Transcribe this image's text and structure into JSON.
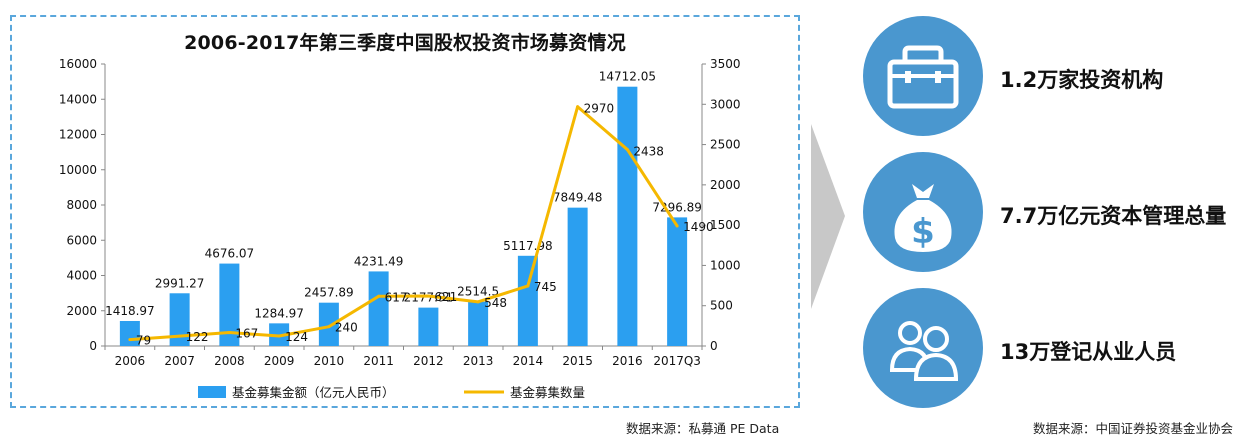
{
  "chart_data": {
    "type": "bar+line",
    "title": "2006-2017年第三季度中国股权投资市场募资情况",
    "categories": [
      "2006",
      "2007",
      "2008",
      "2009",
      "2010",
      "2011",
      "2012",
      "2013",
      "2014",
      "2015",
      "2016",
      "2017Q3"
    ],
    "series": [
      {
        "name": "基金募集金额（亿元人民币）",
        "type": "bar",
        "axis": "left",
        "values": [
          1418.97,
          2991.27,
          4676.07,
          1284.97,
          2457.89,
          4231.49,
          2177.91,
          2514.5,
          5117.98,
          7849.48,
          14712.05,
          7296.89
        ],
        "labels": [
          "1418.97",
          "2991.27",
          "4676.07",
          "1284.97",
          "2457.89",
          "4231.49",
          "2177.91",
          "2514.5",
          "5117.98",
          "7849.48",
          "14712.05",
          "7296.89"
        ],
        "color": "#2b9ff0"
      },
      {
        "name": "基金募集数量",
        "type": "line",
        "axis": "right",
        "values": [
          79,
          122,
          167,
          124,
          240,
          617,
          621,
          548,
          745,
          2970,
          2438,
          1490
        ],
        "labels": [
          "79",
          "122",
          "167",
          "124",
          "240",
          "617",
          "621",
          "548",
          "745",
          "2970",
          "2438",
          "1490"
        ],
        "color": "#f5b800"
      }
    ],
    "y_left": {
      "range": [
        0,
        16000
      ],
      "ticks": [
        "0",
        "2000",
        "4000",
        "6000",
        "8000",
        "10000",
        "12000",
        "14000",
        "16000"
      ]
    },
    "y_right": {
      "range": [
        0,
        3500
      ],
      "ticks": [
        "0",
        "500",
        "1000",
        "1500",
        "2000",
        "2500",
        "3000",
        "3500"
      ]
    },
    "grid": false,
    "legend": "bottom"
  },
  "chart_source": "数据来源：私募通 PE Data",
  "stats": [
    {
      "icon": "briefcase-icon",
      "label": "1.2万家投资机构"
    },
    {
      "icon": "money-bag-icon",
      "label": "7.7万亿元资本管理总量"
    },
    {
      "icon": "people-icon",
      "label": "13万登记从业人员"
    }
  ],
  "stats_source": "数据来源：中国证券投资基金业协会",
  "colors": {
    "bar": "#2b9ff0",
    "line": "#f5b800",
    "circle": "#4a97cf",
    "border": "#5aa7dc",
    "arrow": "#c8c8c8"
  }
}
